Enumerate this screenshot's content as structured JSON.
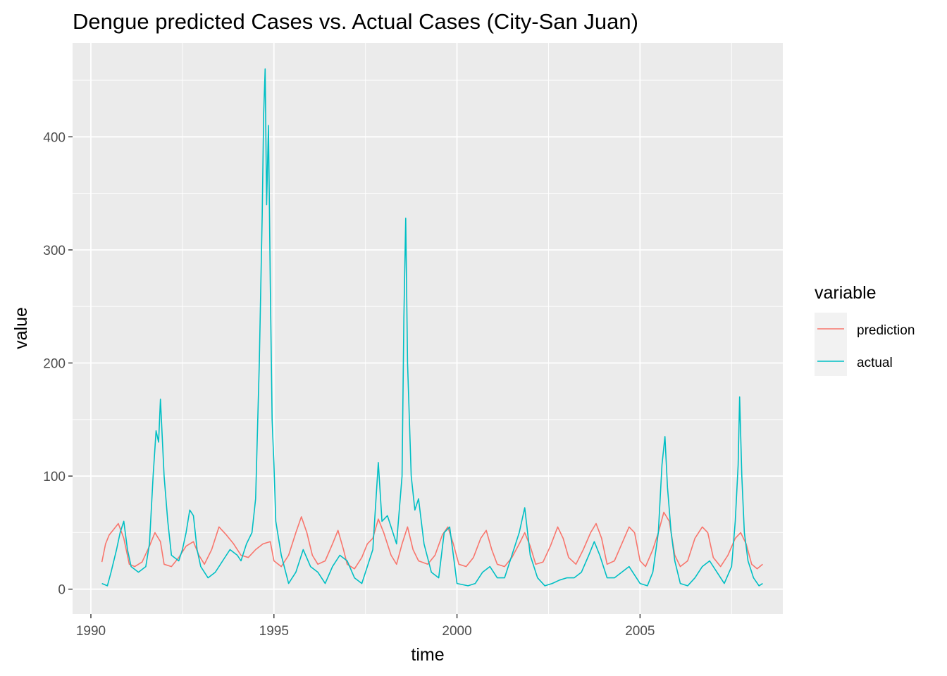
{
  "chart_data": {
    "type": "line",
    "title": "Dengue predicted Cases vs. Actual Cases (City-San Juan)",
    "xlabel": "time",
    "ylabel": "value",
    "xlim": [
      1989.5,
      2008.9
    ],
    "ylim": [
      -22,
      483
    ],
    "x_ticks": [
      1990,
      1995,
      2000,
      2005
    ],
    "x_tick_labels": [
      "1990",
      "1995",
      "2000",
      "2005"
    ],
    "y_ticks": [
      0,
      100,
      200,
      300,
      400
    ],
    "y_tick_labels": [
      "0",
      "100",
      "200",
      "300",
      "400"
    ],
    "grid": true,
    "legend": {
      "title": "variable",
      "position": "right"
    },
    "series": [
      {
        "name": "prediction",
        "color": "#F8766D",
        "points": [
          [
            1990.3,
            24
          ],
          [
            1990.4,
            40
          ],
          [
            1990.5,
            48
          ],
          [
            1990.6,
            52
          ],
          [
            1990.75,
            58
          ],
          [
            1990.9,
            45
          ],
          [
            1991.05,
            22
          ],
          [
            1991.2,
            20
          ],
          [
            1991.4,
            24
          ],
          [
            1991.6,
            38
          ],
          [
            1991.75,
            50
          ],
          [
            1991.9,
            42
          ],
          [
            1992.0,
            22
          ],
          [
            1992.2,
            20
          ],
          [
            1992.4,
            28
          ],
          [
            1992.6,
            38
          ],
          [
            1992.8,
            42
          ],
          [
            1992.95,
            30
          ],
          [
            1993.1,
            22
          ],
          [
            1993.3,
            35
          ],
          [
            1993.5,
            55
          ],
          [
            1993.7,
            48
          ],
          [
            1993.9,
            40
          ],
          [
            1994.1,
            30
          ],
          [
            1994.3,
            28
          ],
          [
            1994.5,
            35
          ],
          [
            1994.7,
            40
          ],
          [
            1994.9,
            42
          ],
          [
            1995.0,
            25
          ],
          [
            1995.2,
            20
          ],
          [
            1995.4,
            30
          ],
          [
            1995.6,
            50
          ],
          [
            1995.75,
            64
          ],
          [
            1995.9,
            50
          ],
          [
            1996.05,
            30
          ],
          [
            1996.2,
            22
          ],
          [
            1996.4,
            25
          ],
          [
            1996.6,
            40
          ],
          [
            1996.75,
            52
          ],
          [
            1996.9,
            35
          ],
          [
            1997.0,
            22
          ],
          [
            1997.2,
            18
          ],
          [
            1997.4,
            28
          ],
          [
            1997.55,
            40
          ],
          [
            1997.7,
            45
          ],
          [
            1997.85,
            62
          ],
          [
            1998.0,
            50
          ],
          [
            1998.2,
            30
          ],
          [
            1998.35,
            22
          ],
          [
            1998.5,
            40
          ],
          [
            1998.65,
            55
          ],
          [
            1998.8,
            35
          ],
          [
            1998.95,
            25
          ],
          [
            1999.2,
            22
          ],
          [
            1999.4,
            30
          ],
          [
            1999.6,
            48
          ],
          [
            1999.75,
            55
          ],
          [
            1999.9,
            40
          ],
          [
            2000.05,
            22
          ],
          [
            2000.25,
            20
          ],
          [
            2000.45,
            28
          ],
          [
            2000.65,
            45
          ],
          [
            2000.8,
            52
          ],
          [
            2000.95,
            35
          ],
          [
            2001.1,
            22
          ],
          [
            2001.3,
            20
          ],
          [
            2001.5,
            28
          ],
          [
            2001.7,
            40
          ],
          [
            2001.85,
            50
          ],
          [
            2002.0,
            38
          ],
          [
            2002.15,
            22
          ],
          [
            2002.35,
            24
          ],
          [
            2002.55,
            38
          ],
          [
            2002.75,
            55
          ],
          [
            2002.9,
            45
          ],
          [
            2003.05,
            28
          ],
          [
            2003.25,
            22
          ],
          [
            2003.45,
            35
          ],
          [
            2003.65,
            50
          ],
          [
            2003.8,
            58
          ],
          [
            2003.95,
            45
          ],
          [
            2004.1,
            22
          ],
          [
            2004.3,
            25
          ],
          [
            2004.5,
            40
          ],
          [
            2004.7,
            55
          ],
          [
            2004.85,
            50
          ],
          [
            2005.0,
            25
          ],
          [
            2005.15,
            20
          ],
          [
            2005.35,
            35
          ],
          [
            2005.5,
            50
          ],
          [
            2005.65,
            68
          ],
          [
            2005.8,
            60
          ],
          [
            2005.95,
            30
          ],
          [
            2006.1,
            20
          ],
          [
            2006.3,
            25
          ],
          [
            2006.5,
            45
          ],
          [
            2006.7,
            55
          ],
          [
            2006.85,
            50
          ],
          [
            2007.0,
            28
          ],
          [
            2007.2,
            20
          ],
          [
            2007.4,
            30
          ],
          [
            2007.6,
            45
          ],
          [
            2007.75,
            50
          ],
          [
            2007.9,
            40
          ],
          [
            2008.05,
            22
          ],
          [
            2008.2,
            18
          ],
          [
            2008.35,
            22
          ]
        ]
      },
      {
        "name": "actual",
        "color": "#00BFC4",
        "points": [
          [
            1990.3,
            5
          ],
          [
            1990.45,
            3
          ],
          [
            1990.55,
            15
          ],
          [
            1990.7,
            35
          ],
          [
            1990.8,
            50
          ],
          [
            1990.9,
            60
          ],
          [
            1991.0,
            35
          ],
          [
            1991.1,
            20
          ],
          [
            1991.3,
            15
          ],
          [
            1991.5,
            20
          ],
          [
            1991.6,
            40
          ],
          [
            1991.7,
            100
          ],
          [
            1991.78,
            140
          ],
          [
            1991.85,
            130
          ],
          [
            1991.9,
            168
          ],
          [
            1992.0,
            100
          ],
          [
            1992.1,
            60
          ],
          [
            1992.2,
            30
          ],
          [
            1992.4,
            25
          ],
          [
            1992.5,
            35
          ],
          [
            1992.6,
            50
          ],
          [
            1992.7,
            70
          ],
          [
            1992.8,
            65
          ],
          [
            1992.9,
            35
          ],
          [
            1993.0,
            20
          ],
          [
            1993.2,
            10
          ],
          [
            1993.4,
            15
          ],
          [
            1993.6,
            25
          ],
          [
            1993.8,
            35
          ],
          [
            1994.0,
            30
          ],
          [
            1994.1,
            25
          ],
          [
            1994.25,
            40
          ],
          [
            1994.4,
            50
          ],
          [
            1994.5,
            80
          ],
          [
            1994.6,
            200
          ],
          [
            1994.68,
            330
          ],
          [
            1994.72,
            420
          ],
          [
            1994.76,
            460
          ],
          [
            1994.8,
            340
          ],
          [
            1994.85,
            410
          ],
          [
            1994.9,
            270
          ],
          [
            1994.95,
            150
          ],
          [
            1995.0,
            110
          ],
          [
            1995.05,
            60
          ],
          [
            1995.2,
            30
          ],
          [
            1995.4,
            5
          ],
          [
            1995.6,
            15
          ],
          [
            1995.8,
            35
          ],
          [
            1996.0,
            20
          ],
          [
            1996.2,
            15
          ],
          [
            1996.4,
            5
          ],
          [
            1996.6,
            20
          ],
          [
            1996.8,
            30
          ],
          [
            1997.0,
            25
          ],
          [
            1997.2,
            10
          ],
          [
            1997.4,
            5
          ],
          [
            1997.55,
            20
          ],
          [
            1997.7,
            35
          ],
          [
            1997.85,
            112
          ],
          [
            1997.95,
            60
          ],
          [
            1998.1,
            65
          ],
          [
            1998.2,
            55
          ],
          [
            1998.35,
            40
          ],
          [
            1998.5,
            100
          ],
          [
            1998.55,
            240
          ],
          [
            1998.6,
            328
          ],
          [
            1998.65,
            200
          ],
          [
            1998.75,
            100
          ],
          [
            1998.85,
            70
          ],
          [
            1998.95,
            80
          ],
          [
            1999.1,
            40
          ],
          [
            1999.3,
            15
          ],
          [
            1999.5,
            10
          ],
          [
            1999.65,
            50
          ],
          [
            1999.8,
            55
          ],
          [
            1999.9,
            30
          ],
          [
            2000.0,
            5
          ],
          [
            2000.3,
            3
          ],
          [
            2000.5,
            5
          ],
          [
            2000.7,
            15
          ],
          [
            2000.9,
            20
          ],
          [
            2001.1,
            10
          ],
          [
            2001.3,
            10
          ],
          [
            2001.5,
            30
          ],
          [
            2001.7,
            50
          ],
          [
            2001.85,
            72
          ],
          [
            2002.0,
            30
          ],
          [
            2002.2,
            10
          ],
          [
            2002.4,
            3
          ],
          [
            2002.6,
            5
          ],
          [
            2002.8,
            8
          ],
          [
            2003.0,
            10
          ],
          [
            2003.2,
            10
          ],
          [
            2003.4,
            15
          ],
          [
            2003.6,
            30
          ],
          [
            2003.75,
            42
          ],
          [
            2003.9,
            30
          ],
          [
            2004.1,
            10
          ],
          [
            2004.3,
            10
          ],
          [
            2004.5,
            15
          ],
          [
            2004.7,
            20
          ],
          [
            2004.9,
            10
          ],
          [
            2005.0,
            5
          ],
          [
            2005.2,
            3
          ],
          [
            2005.35,
            15
          ],
          [
            2005.5,
            50
          ],
          [
            2005.6,
            110
          ],
          [
            2005.68,
            135
          ],
          [
            2005.75,
            90
          ],
          [
            2005.85,
            50
          ],
          [
            2005.95,
            25
          ],
          [
            2006.1,
            5
          ],
          [
            2006.3,
            3
          ],
          [
            2006.5,
            10
          ],
          [
            2006.7,
            20
          ],
          [
            2006.9,
            25
          ],
          [
            2007.1,
            15
          ],
          [
            2007.3,
            5
          ],
          [
            2007.5,
            20
          ],
          [
            2007.6,
            60
          ],
          [
            2007.68,
            110
          ],
          [
            2007.72,
            170
          ],
          [
            2007.78,
            100
          ],
          [
            2007.85,
            50
          ],
          [
            2007.95,
            25
          ],
          [
            2008.1,
            10
          ],
          [
            2008.25,
            3
          ],
          [
            2008.35,
            5
          ]
        ]
      }
    ]
  }
}
